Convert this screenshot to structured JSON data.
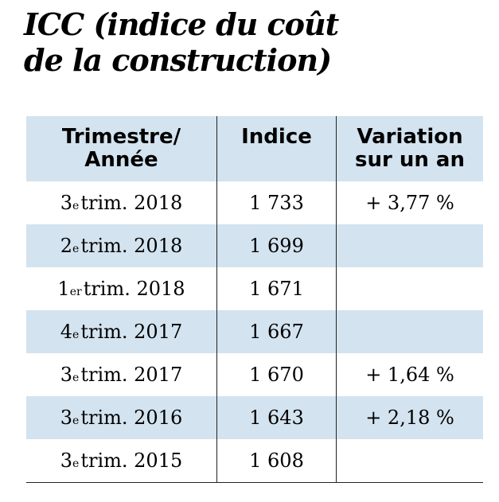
{
  "title": {
    "line1": "ICC (indice du coût",
    "line2": "de la construction)"
  },
  "table": {
    "headers": [
      {
        "line1": "Trimestre/",
        "line2": "Année"
      },
      {
        "line1": "Indice",
        "line2": ""
      },
      {
        "line1": "Variation",
        "line2": "sur un an"
      }
    ],
    "rows": [
      {
        "num": "3",
        "ord": "e",
        "rest": " trim. 2018",
        "indice": "1 733",
        "variation": "+ 3,77 %"
      },
      {
        "num": "2",
        "ord": "e",
        "rest": " trim. 2018",
        "indice": "1 699",
        "variation": ""
      },
      {
        "num": "1",
        "ord": "er",
        "rest": " trim. 2018",
        "indice": "1 671",
        "variation": ""
      },
      {
        "num": "4",
        "ord": "e",
        "rest": " trim. 2017",
        "indice": "1 667",
        "variation": ""
      },
      {
        "num": "3",
        "ord": "e",
        "rest": " trim. 2017",
        "indice": "1 670",
        "variation": "+ 1,64 %"
      },
      {
        "num": "3",
        "ord": "e",
        "rest": " trim. 2016",
        "indice": "1 643",
        "variation": "+ 2,18 %"
      },
      {
        "num": "3",
        "ord": "e",
        "rest": " trim. 2015",
        "indice": "1 608",
        "variation": ""
      }
    ]
  },
  "colors": {
    "shade": "#d3e3ef",
    "rule": "#222222"
  }
}
